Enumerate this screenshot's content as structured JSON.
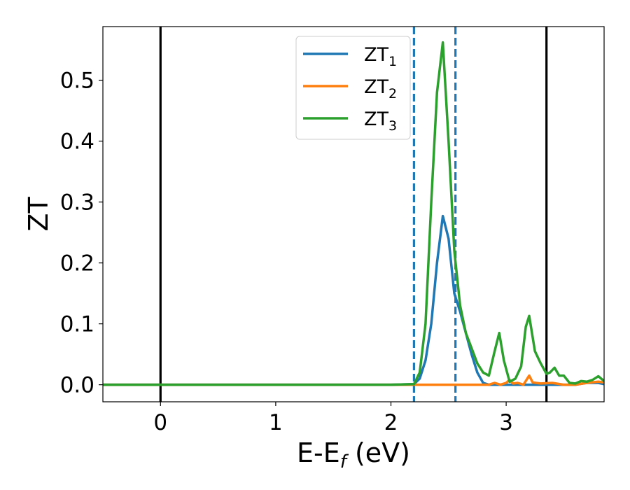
{
  "chart_data": {
    "type": "line",
    "title": "",
    "xlabel": {
      "main": "E-E",
      "sub": "f",
      "unit": " (eV)"
    },
    "ylabel": "ZT",
    "xlim": [
      -0.5,
      3.85
    ],
    "ylim": [
      -0.028,
      0.588
    ],
    "xticks": [
      0,
      1,
      2,
      3
    ],
    "yticks": [
      0.0,
      0.1,
      0.2,
      0.3,
      0.4,
      0.5
    ],
    "ytick_labels": [
      "0.0",
      "0.1",
      "0.2",
      "0.3",
      "0.4",
      "0.5"
    ],
    "grid": false,
    "legend_position": "top-center",
    "vlines": [
      {
        "x": 0.0,
        "style": "solid",
        "color": "#000000"
      },
      {
        "x": 3.35,
        "style": "solid",
        "color": "#000000"
      },
      {
        "x": 2.2,
        "style": "dashed",
        "color": "#1f77b4"
      },
      {
        "x": 2.56,
        "style": "dashed",
        "color": "#1f77b4"
      }
    ],
    "series": [
      {
        "name": "ZT",
        "sub": "1",
        "color": "#1f77b4",
        "x": [
          -0.5,
          2.0,
          2.2,
          2.25,
          2.3,
          2.35,
          2.4,
          2.45,
          2.5,
          2.55,
          2.6,
          2.65,
          2.7,
          2.75,
          2.8,
          2.85,
          2.9,
          3.0,
          3.1,
          3.2,
          3.3,
          3.4,
          3.5,
          3.6,
          3.7,
          3.8,
          3.85
        ],
        "y": [
          0.0,
          0.0,
          0.001,
          0.01,
          0.04,
          0.1,
          0.2,
          0.277,
          0.24,
          0.15,
          0.12,
          0.085,
          0.05,
          0.02,
          0.003,
          0.0,
          0.0,
          0.0,
          0.0,
          0.0,
          0.0,
          0.0,
          0.0,
          0.0,
          0.003,
          0.003,
          0.001
        ]
      },
      {
        "name": "ZT",
        "sub": "2",
        "color": "#ff7f0e",
        "x": [
          -0.5,
          2.0,
          2.85,
          2.9,
          2.95,
          3.0,
          3.03,
          3.06,
          3.1,
          3.15,
          3.2,
          3.23,
          3.26,
          3.3,
          3.4,
          3.5,
          3.6,
          3.7,
          3.8,
          3.85
        ],
        "y": [
          0.0,
          0.0,
          0.0,
          0.003,
          0.0,
          0.003,
          0.008,
          0.002,
          0.003,
          0.0,
          0.015,
          0.004,
          0.003,
          0.002,
          0.003,
          0.0,
          0.0,
          0.003,
          0.005,
          0.004
        ]
      },
      {
        "name": "ZT",
        "sub": "3",
        "color": "#2ca02c",
        "x": [
          -0.5,
          2.0,
          2.2,
          2.25,
          2.3,
          2.35,
          2.4,
          2.45,
          2.5,
          2.55,
          2.6,
          2.65,
          2.7,
          2.75,
          2.8,
          2.85,
          2.9,
          2.94,
          2.98,
          3.03,
          3.08,
          3.13,
          3.17,
          3.2,
          3.25,
          3.3,
          3.35,
          3.38,
          3.42,
          3.46,
          3.5,
          3.55,
          3.6,
          3.65,
          3.7,
          3.75,
          3.8,
          3.85
        ],
        "y": [
          0.0,
          0.0,
          0.001,
          0.02,
          0.1,
          0.3,
          0.48,
          0.562,
          0.4,
          0.22,
          0.13,
          0.085,
          0.06,
          0.035,
          0.02,
          0.015,
          0.055,
          0.085,
          0.04,
          0.005,
          0.01,
          0.03,
          0.095,
          0.113,
          0.055,
          0.035,
          0.018,
          0.02,
          0.028,
          0.015,
          0.015,
          0.003,
          0.002,
          0.006,
          0.005,
          0.008,
          0.014,
          0.006
        ]
      }
    ]
  }
}
